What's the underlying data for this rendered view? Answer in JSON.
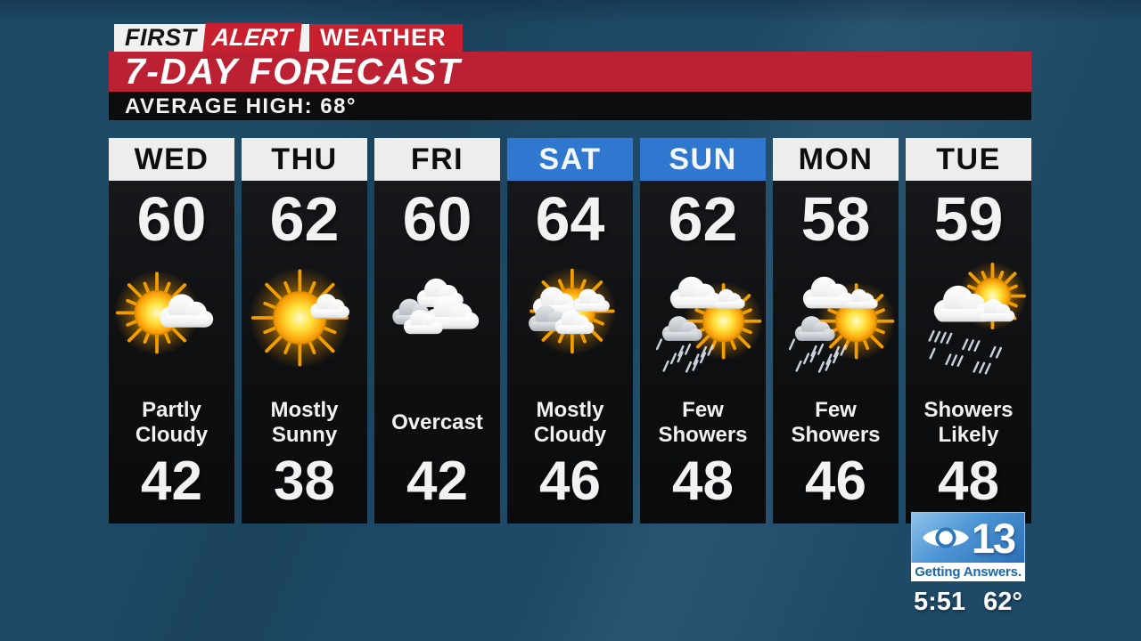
{
  "branding": {
    "first_label": "FIRST",
    "alert_label": "ALERT",
    "weather_label": "WEATHER",
    "title": "7-DAY FORECAST",
    "average_high": "AVERAGE HIGH: 68°"
  },
  "forecast": {
    "days": [
      {
        "day": "WED",
        "high": "60",
        "low": "42",
        "condition": "Partly Cloudy",
        "icon": "partly-cloudy",
        "header_style": "white"
      },
      {
        "day": "THU",
        "high": "62",
        "low": "38",
        "condition": "Mostly Sunny",
        "icon": "mostly-sunny",
        "header_style": "white"
      },
      {
        "day": "FRI",
        "high": "60",
        "low": "42",
        "condition": "Overcast",
        "icon": "overcast",
        "header_style": "white"
      },
      {
        "day": "SAT",
        "high": "64",
        "low": "46",
        "condition": "Mostly Cloudy",
        "icon": "mostly-cloudy",
        "header_style": "blue"
      },
      {
        "day": "SUN",
        "high": "62",
        "low": "48",
        "condition": "Few Showers",
        "icon": "few-showers",
        "header_style": "blue"
      },
      {
        "day": "MON",
        "high": "58",
        "low": "46",
        "condition": "Few Showers",
        "icon": "few-showers",
        "header_style": "white"
      },
      {
        "day": "TUE",
        "high": "59",
        "low": "48",
        "condition": "Showers Likely",
        "icon": "showers-likely",
        "header_style": "white"
      }
    ]
  },
  "station": {
    "channel_number": "13",
    "tagline": "Getting Answers.",
    "time": "5:51",
    "temperature": "62°"
  },
  "colors": {
    "background": "#1e4a67",
    "banner_red": "#bb2033",
    "alert_red": "#c9202f",
    "bar_black": "#0c0d0f",
    "weekend_blue": "#3078cf",
    "header_white": "#ededed",
    "station_blue": "#2a6fb5",
    "tagline_blue": "#1c66ae"
  }
}
